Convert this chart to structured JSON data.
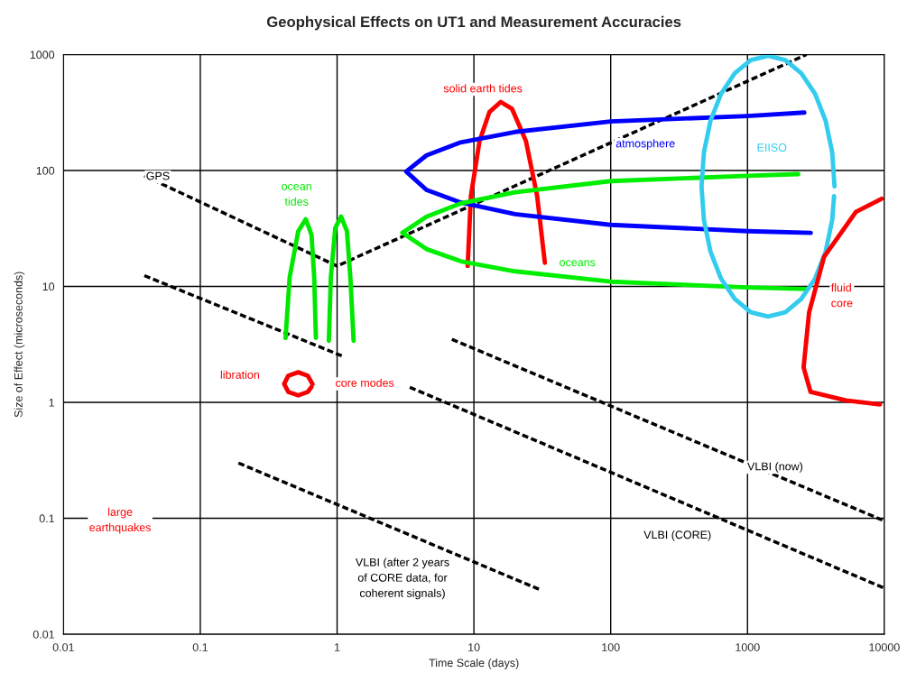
{
  "chart_data": {
    "type": "line",
    "title": "Geophysical Effects on UT1 and Measurement Accuracies",
    "xlabel": "Time Scale (days)",
    "ylabel": "Size of Effect (microseconds)",
    "log": "xy",
    "grid": true,
    "xlim": [
      0.01,
      10000
    ],
    "xticks": [
      0.01,
      0.1,
      1,
      10,
      100,
      1000,
      10000
    ],
    "ylim": [
      0.01,
      1000
    ],
    "yticks": [
      0.01,
      0.1,
      1,
      10,
      100,
      1000
    ],
    "series": [
      {
        "name": "GPS",
        "color": "#000000",
        "line_style": "dashed",
        "x": [
          0.039,
          1.0,
          2700
        ],
        "values": [
          90,
          15,
          1000
        ]
      },
      {
        "color": "#000000",
        "line_style": "dashed",
        "x": [
          0.039,
          1.1
        ],
        "values": [
          12.4,
          2.5
        ]
      },
      {
        "name": "VLBI (now)",
        "color": "#000000",
        "line_style": "dashed",
        "x": [
          6.9,
          10000
        ],
        "values": [
          3.5,
          0.095
        ]
      },
      {
        "name": "VLBI (CORE)",
        "color": "#000000",
        "line_style": "dashed",
        "x": [
          3.4,
          10000
        ],
        "values": [
          1.35,
          0.025
        ]
      },
      {
        "name": "VLBI (after 2 years\nof CORE data, for\ncoherent signals)",
        "color": "#000000",
        "line_style": "dashed",
        "x": [
          0.19,
          31
        ],
        "values": [
          0.3,
          0.024
        ]
      },
      {
        "name": "ocean\ntides",
        "color": "#00e800",
        "line_style": "solid",
        "x": [
          0.42,
          0.45,
          0.52,
          0.59,
          0.65,
          0.68,
          0.7,
          null,
          0.87,
          0.9,
          0.97,
          1.07,
          1.18,
          1.25,
          1.32
        ],
        "values": [
          3.6,
          12,
          30,
          38,
          28,
          12,
          3.6,
          null,
          3.4,
          12,
          32,
          40,
          30,
          12,
          3.4
        ]
      },
      {
        "name": "libration",
        "color": "#f40000",
        "line_style": "solid",
        "x": [
          0.66,
          0.61,
          0.52,
          0.44,
          0.41,
          0.44,
          0.52,
          0.61,
          0.65
        ],
        "values": [
          1.44,
          1.7,
          1.82,
          1.7,
          1.44,
          1.23,
          1.15,
          1.23,
          1.36
        ]
      },
      {
        "name": "solid earth tides",
        "color": "#ff0000",
        "line_style": "solid",
        "x": [
          9,
          9.5,
          11,
          13,
          15.7,
          19,
          24,
          29,
          33
        ],
        "values": [
          15,
          60,
          180,
          320,
          390,
          340,
          180,
          60,
          16
        ]
      },
      {
        "name": "atmosphere",
        "color": "#0000ff",
        "line_style": "solid",
        "x": [
          2600,
          1000,
          100,
          20,
          8,
          4.5,
          3.2,
          4.5,
          8,
          20,
          100,
          1000,
          2900
        ],
        "values": [
          316,
          295,
          265,
          215,
          175,
          135,
          98,
          68,
          53,
          42,
          34,
          30,
          29
        ]
      },
      {
        "name": "oceans",
        "color": "#00ee00",
        "line_style": "solid",
        "x": [
          2350,
          1000,
          100,
          20,
          8,
          4.5,
          3.0,
          4.5,
          8,
          20,
          100,
          1000,
          2700
        ],
        "values": [
          93,
          90,
          81,
          65,
          52,
          40,
          29,
          21,
          16.5,
          13.5,
          11,
          9.8,
          9.5
        ]
      },
      {
        "name": "EIISO",
        "color": "#33ccee",
        "line_style": "solid",
        "x": [
          4325,
          4160,
          3725,
          3120,
          2470,
          1890,
          1413,
          1057,
          807,
          640,
          536,
          480,
          461,
          480,
          536,
          640,
          807,
          1057,
          1413,
          1890,
          2470,
          3120,
          3725,
          4160,
          4290
        ],
        "values": [
          73,
          143,
          268,
          457,
          690,
          895,
          977,
          895,
          690,
          457,
          268,
          143,
          73,
          37.5,
          20,
          11.7,
          7.8,
          6.0,
          5.5,
          6.0,
          7.8,
          11.7,
          20,
          37.5,
          60
        ]
      },
      {
        "name": "fluid\ncore",
        "color": "#fa0000",
        "line_style": "solid",
        "x": [
          9550,
          6200,
          3630,
          2820,
          2570,
          2890,
          5250,
          9300
        ],
        "values": [
          57,
          44,
          18,
          6.0,
          2.0,
          1.23,
          1.04,
          0.96
        ]
      }
    ],
    "annotations": [
      "core modes",
      "large\nearthquakes"
    ]
  }
}
